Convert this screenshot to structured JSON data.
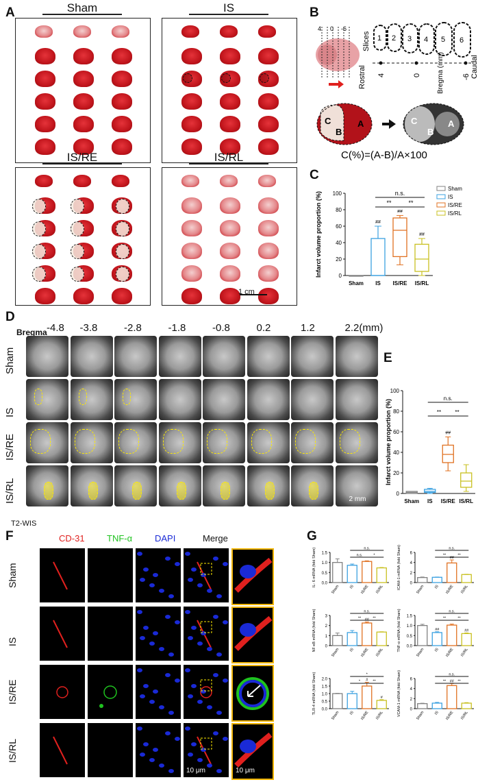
{
  "panels": {
    "A": {
      "letter": "A",
      "groups": [
        "Sham",
        "IS",
        "IS/RE",
        "IS/RL"
      ],
      "scale_bar": "1 cm"
    },
    "B": {
      "letter": "B",
      "bregma_ticks": [
        "4",
        "0",
        "-6"
      ],
      "slices_label": "Slices",
      "slice_numbers": [
        "1",
        "2",
        "3",
        "4",
        "5",
        "6"
      ],
      "rostral": "Rostral",
      "caudal": "Caudal",
      "bregma_label": "Bregma (mm)",
      "axis_values": [
        "4",
        "0",
        "-6"
      ],
      "region_labels": [
        "C",
        "B",
        "A",
        "C",
        "B",
        "A"
      ],
      "formula": "C(%)=(A-B)/A×100"
    },
    "C": {
      "letter": "C",
      "ylabel": "Infarct volume proportion (%)",
      "sig_ns": "n.s.",
      "sig_star": "**",
      "hash": "##"
    },
    "D": {
      "letter": "D",
      "bregma_label": "Bregma",
      "bregma_values": [
        "-4.8",
        "-3.8",
        "-2.8",
        "-1.8",
        "-0.8",
        "0.2",
        "1.2",
        "2.2(mm)"
      ],
      "rows": [
        "Sham",
        "IS",
        "IS/RE",
        "IS/RL"
      ],
      "scale": "2 mm",
      "modality": "T2-WIS"
    },
    "E": {
      "letter": "E",
      "ylabel": "Infarct volume proportion (%)",
      "sig_ns": "n.s.",
      "sig_star": "**",
      "hash": "##"
    },
    "F": {
      "letter": "F",
      "columns": [
        "CD-31",
        "TNF-α",
        "DAPI",
        "Merge"
      ],
      "column_colors": [
        "#e0201e",
        "#1fc21f",
        "#1a2ad6",
        "#111111"
      ],
      "rows": [
        "Sham",
        "IS",
        "IS/RE",
        "IS/RL"
      ],
      "scale_merge": "10 μm",
      "scale_zoom": "10 μm"
    },
    "G": {
      "letter": "G"
    }
  },
  "group_colors": {
    "Sham": "#808080",
    "IS": "#3aa0e0",
    "IS/RE": "#e07020",
    "IS/RL": "#c8c020"
  },
  "chart_data": [
    {
      "id": "C",
      "type": "box",
      "categories": [
        "Sham",
        "IS",
        "IS/RE",
        "IS/RL"
      ],
      "ylabel": "Infarct volume proportion (%)",
      "ylim": [
        0,
        100
      ],
      "yticks": [
        0,
        20,
        40,
        60,
        80,
        100
      ],
      "boxes": [
        {
          "min": 0,
          "q1": 0,
          "median": 0,
          "q3": 0,
          "max": 0
        },
        {
          "min": 0,
          "q1": 0,
          "median": 0,
          "q3": 45,
          "max": 60
        },
        {
          "min": 13,
          "q1": 23,
          "median": 55,
          "q3": 70,
          "max": 73
        },
        {
          "min": 0,
          "q1": 5,
          "median": 20,
          "q3": 38,
          "max": 45
        }
      ],
      "legend": [
        "Sham",
        "IS",
        "IS/RE",
        "IS/RL"
      ],
      "annotations": [
        "##",
        "##",
        "##",
        "**",
        "**",
        "n.s."
      ]
    },
    {
      "id": "E",
      "type": "box",
      "categories": [
        "Sham",
        "IS",
        "IS/RE",
        "IS/RL"
      ],
      "ylabel": "Infarct volume proportion (%)",
      "ylim": [
        0,
        100
      ],
      "yticks": [
        0,
        20,
        40,
        60,
        80,
        100
      ],
      "boxes": [
        {
          "min": 0,
          "q1": 0,
          "median": 1,
          "q3": 2,
          "max": 2
        },
        {
          "min": 0,
          "q1": 1,
          "median": 2,
          "q3": 4,
          "max": 5
        },
        {
          "min": 22,
          "q1": 30,
          "median": 38,
          "q3": 47,
          "max": 55
        },
        {
          "min": 2,
          "q1": 6,
          "median": 12,
          "q3": 20,
          "max": 28
        }
      ],
      "annotations": [
        "##",
        "**",
        "**",
        "n.s."
      ]
    },
    {
      "id": "G1",
      "type": "bar",
      "ylabel": "IL- 6 mRNA (fold Sham)",
      "categories": [
        "Sham",
        "IS",
        "IS/RE",
        "IS/RL"
      ],
      "values": [
        1.0,
        0.86,
        1.05,
        0.73
      ],
      "errors": [
        0.18,
        0.06,
        0.03,
        0.02
      ],
      "ylim": [
        0,
        1.5
      ],
      "yticks": [
        0.0,
        0.5,
        1.0,
        1.5
      ],
      "marks": [
        "",
        "",
        "",
        ""
      ],
      "brackets": [
        {
          "from": 2,
          "to": 3,
          "label": "*"
        },
        {
          "from": 1,
          "to": 2,
          "label": "n.s."
        },
        {
          "from": 1,
          "to": 3,
          "label": "n.s."
        }
      ]
    },
    {
      "id": "G2",
      "type": "bar",
      "ylabel": "ICAM-1 mRNA (fold Sham)",
      "categories": [
        "Sham",
        "IS",
        "IS/RE",
        "IS/RL"
      ],
      "values": [
        1.0,
        1.05,
        3.9,
        1.6
      ],
      "errors": [
        0.1,
        0.05,
        0.6,
        0.05
      ],
      "ylim": [
        0,
        6
      ],
      "yticks": [
        0,
        2,
        4,
        6
      ],
      "marks": [
        "",
        "",
        "##",
        ""
      ],
      "brackets": [
        {
          "from": 1,
          "to": 2,
          "label": "**"
        },
        {
          "from": 2,
          "to": 3,
          "label": "**"
        },
        {
          "from": 1,
          "to": 3,
          "label": "n.s."
        }
      ]
    },
    {
      "id": "G3",
      "type": "bar",
      "ylabel": "NF-κB mRNA (fold Sham)",
      "categories": [
        "Sham",
        "IS",
        "IS/RE",
        "IS/RL"
      ],
      "values": [
        1.0,
        1.3,
        2.25,
        1.35
      ],
      "errors": [
        0.25,
        0.2,
        0.1,
        0.03
      ],
      "ylim": [
        0,
        3
      ],
      "yticks": [
        0,
        1,
        2,
        3
      ],
      "marks": [
        "",
        "",
        "##",
        ""
      ],
      "brackets": [
        {
          "from": 1,
          "to": 2,
          "label": "**"
        },
        {
          "from": 2,
          "to": 3,
          "label": "**"
        },
        {
          "from": 1,
          "to": 3,
          "label": "n.s."
        }
      ]
    },
    {
      "id": "G4",
      "type": "bar",
      "ylabel": "TNF-α mRNA (fold Sham)",
      "categories": [
        "Sham",
        "IS",
        "IS/RE",
        "IS/RL"
      ],
      "values": [
        1.0,
        0.65,
        1.02,
        0.6
      ],
      "errors": [
        0.06,
        0.04,
        0.05,
        0.03
      ],
      "ylim": [
        0,
        1.5
      ],
      "yticks": [
        0.0,
        0.5,
        1.0,
        1.5
      ],
      "marks": [
        "",
        "##",
        "",
        "##"
      ],
      "brackets": [
        {
          "from": 1,
          "to": 2,
          "label": "**"
        },
        {
          "from": 2,
          "to": 3,
          "label": "**"
        },
        {
          "from": 1,
          "to": 3,
          "label": "n.s."
        }
      ]
    },
    {
      "id": "G5",
      "type": "bar",
      "ylabel": "TLR-4 mRNA (fold Sham)",
      "categories": [
        "Sham",
        "IS",
        "IS/RE",
        "IS/RL"
      ],
      "values": [
        1.0,
        1.0,
        1.5,
        0.55
      ],
      "errors": [
        0.02,
        0.15,
        0.25,
        0.05
      ],
      "ylim": [
        0,
        2.0
      ],
      "yticks": [
        0.0,
        0.5,
        1.0,
        1.5,
        2.0
      ],
      "marks": [
        "",
        "",
        "#",
        "#"
      ],
      "brackets": [
        {
          "from": 2,
          "to": 3,
          "label": "**"
        },
        {
          "from": 1,
          "to": 2,
          "label": "*"
        },
        {
          "from": 1,
          "to": 3,
          "label": "*"
        }
      ]
    },
    {
      "id": "G6",
      "type": "bar",
      "ylabel": "VCAM-1 mRNA (fold Sham)",
      "categories": [
        "Sham",
        "IS",
        "IS/RE",
        "IS/RL"
      ],
      "values": [
        1.0,
        1.1,
        4.6,
        1.1
      ],
      "errors": [
        0.08,
        0.15,
        0.4,
        0.1
      ],
      "ylim": [
        0,
        6
      ],
      "yticks": [
        0,
        2,
        4,
        6
      ],
      "marks": [
        "",
        "",
        "##",
        ""
      ],
      "brackets": [
        {
          "from": 1,
          "to": 2,
          "label": "**"
        },
        {
          "from": 2,
          "to": 3,
          "label": "**"
        },
        {
          "from": 1,
          "to": 3,
          "label": "n.s."
        }
      ]
    }
  ]
}
